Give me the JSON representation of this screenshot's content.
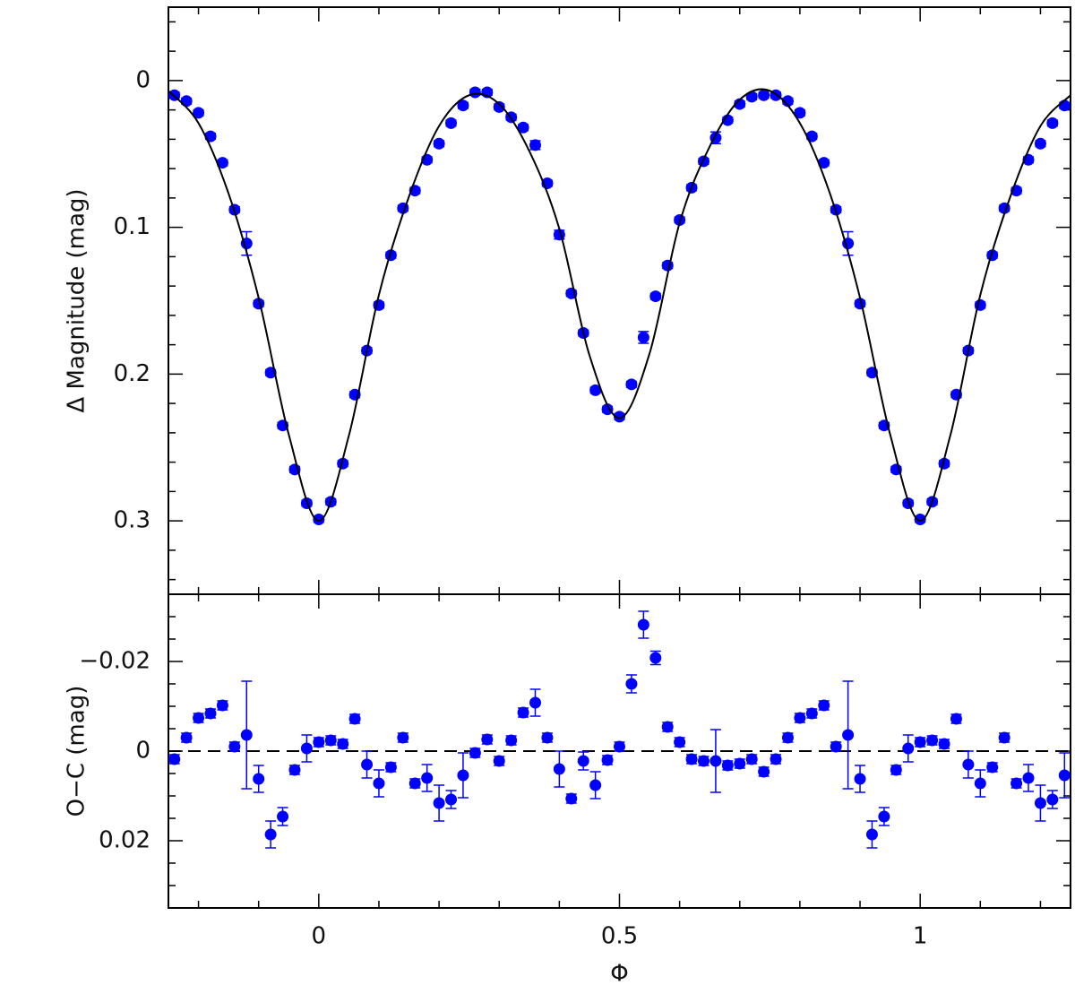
{
  "chart_data": [
    {
      "type": "scatter",
      "y_label": "Δ Magnitude (mag)",
      "xlim": [
        -0.25,
        1.25
      ],
      "xticks": [
        0,
        0.5,
        1
      ],
      "xticks_minor": [
        -0.2,
        -0.1,
        0.1,
        0.2,
        0.3,
        0.4,
        0.6,
        0.7,
        0.8,
        0.9,
        1.1,
        1.2
      ],
      "show_xtick_labels": false,
      "ylim": [
        0.35,
        -0.05
      ],
      "yticks": [
        0,
        0.1,
        0.2,
        0.3
      ],
      "yticks_minor": [
        -0.04,
        -0.02,
        0.02,
        0.04,
        0.06,
        0.08,
        0.12,
        0.14,
        0.16,
        0.18,
        0.22,
        0.24,
        0.26,
        0.28,
        0.32,
        0.34
      ],
      "x": [
        -0.24,
        -0.22,
        -0.2,
        -0.18,
        -0.16,
        -0.14,
        -0.12,
        -0.1,
        -0.08,
        -0.06,
        -0.04,
        -0.02,
        0,
        0.02,
        0.04,
        0.06,
        0.08,
        0.1,
        0.12,
        0.14,
        0.16,
        0.18,
        0.2,
        0.22,
        0.24,
        0.26,
        0.28,
        0.3,
        0.32,
        0.34,
        0.36,
        0.38,
        0.4,
        0.42,
        0.44,
        0.46,
        0.48,
        0.5,
        0.52,
        0.54,
        0.56,
        0.58,
        0.6,
        0.62,
        0.64,
        0.66,
        0.68,
        0.7,
        0.72,
        0.74,
        0.76,
        0.78,
        0.8,
        0.82,
        0.84,
        0.86,
        0.88,
        0.9,
        0.92,
        0.94,
        0.96,
        0.98,
        1,
        1.02,
        1.04,
        1.06,
        1.08,
        1.1,
        1.12,
        1.14,
        1.16,
        1.18,
        1.2,
        1.22,
        1.24
      ],
      "series": [
        {
          "color": "#0000ff",
          "values": [
            0.01,
            0.014,
            0.022,
            0.038,
            0.056,
            0.088,
            0.111,
            0.152,
            0.199,
            0.235,
            0.265,
            0.288,
            0.299,
            0.287,
            0.261,
            0.214,
            0.184,
            0.153,
            0.119,
            0.087,
            0.075,
            0.054,
            0.043,
            0.029,
            0.017,
            0.008,
            0.008,
            0.018,
            0.025,
            0.032,
            0.044,
            0.07,
            0.105,
            0.145,
            0.172,
            0.211,
            0.224,
            0.229,
            0.207,
            0.175,
            0.147,
            0.126,
            0.095,
            0.073,
            0.055,
            0.039,
            0.027,
            0.016,
            0.011,
            0.01,
            0.01,
            0.014,
            0.022,
            0.038,
            0.056,
            0.088,
            0.111,
            0.152,
            0.199,
            0.235,
            0.265,
            0.288,
            0.299,
            0.287,
            0.261,
            0.214,
            0.184,
            0.153,
            0.119,
            0.087,
            0.075,
            0.054,
            0.043,
            0.029,
            0.017
          ],
          "errors": [
            0.002,
            0.002,
            0.002,
            0.002,
            0.002,
            0.002,
            0.008,
            0.002,
            0.002,
            0.002,
            0.002,
            0.002,
            0.002,
            0.002,
            0.002,
            0.002,
            0.002,
            0.002,
            0.002,
            0.002,
            0.002,
            0.002,
            0.002,
            0.002,
            0.002,
            0.002,
            0.002,
            0.002,
            0.002,
            0.002,
            0.003,
            0.002,
            0.003,
            0.002,
            0.002,
            0.002,
            0.002,
            0.002,
            0.002,
            0.004,
            0.002,
            0.002,
            0.002,
            0.002,
            0.002,
            0.004,
            0.002,
            0.002,
            0.002,
            0.002,
            0.002,
            0.002,
            0.002,
            0.002,
            0.002,
            0.002,
            0.008,
            0.002,
            0.002,
            0.002,
            0.002,
            0.002,
            0.002,
            0.002,
            0.002,
            0.002,
            0.002,
            0.002,
            0.002,
            0.002,
            0.002,
            0.002,
            0.002,
            0.002,
            0.002
          ]
        },
        {
          "type": "line",
          "color": "#000000",
          "x": [
            -0.25,
            -0.2,
            -0.15,
            -0.1,
            -0.05,
            0,
            0.05,
            0.1,
            0.15,
            0.2,
            0.25,
            0.3,
            0.35,
            0.4,
            0.45,
            0.5,
            0.55,
            0.6,
            0.65,
            0.7,
            0.75,
            0.8,
            0.85,
            0.9,
            0.95,
            1,
            1.05,
            1.1,
            1.15,
            1.2,
            1.25
          ],
          "values": [
            0.007,
            0.029,
            0.077,
            0.148,
            0.241,
            0.3,
            0.242,
            0.146,
            0.079,
            0.031,
            0.01,
            0.016,
            0.048,
            0.101,
            0.187,
            0.23,
            0.186,
            0.097,
            0.045,
            0.013,
            0.007,
            0.029,
            0.077,
            0.148,
            0.241,
            0.3,
            0.242,
            0.146,
            0.079,
            0.031,
            0.01
          ]
        }
      ]
    },
    {
      "type": "scatter",
      "y_label": "O−C (mag)",
      "x_label": "Φ",
      "xlim": [
        -0.25,
        1.25
      ],
      "xticks": [
        0,
        0.5,
        1
      ],
      "xticks_minor": [
        -0.2,
        -0.1,
        0.1,
        0.2,
        0.3,
        0.4,
        0.6,
        0.7,
        0.8,
        0.9,
        1.1,
        1.2
      ],
      "show_xtick_labels": true,
      "ylim": [
        0.035,
        -0.035
      ],
      "yticks": [
        {
          "value": -0.02,
          "label": "−0.02"
        },
        0,
        0.02
      ],
      "yticks_minor": [
        -0.03,
        -0.025,
        -0.015,
        -0.01,
        -0.005,
        0.005,
        0.01,
        0.015,
        0.025,
        0.03
      ],
      "hline": {
        "value": 0,
        "style": "dashed"
      },
      "x": [
        -0.24,
        -0.22,
        -0.2,
        -0.18,
        -0.16,
        -0.14,
        -0.12,
        -0.1,
        -0.08,
        -0.06,
        -0.04,
        -0.02,
        0,
        0.02,
        0.04,
        0.06,
        0.08,
        0.1,
        0.12,
        0.14,
        0.16,
        0.18,
        0.2,
        0.22,
        0.24,
        0.26,
        0.28,
        0.3,
        0.32,
        0.34,
        0.36,
        0.38,
        0.4,
        0.42,
        0.44,
        0.46,
        0.48,
        0.5,
        0.52,
        0.54,
        0.56,
        0.58,
        0.6,
        0.62,
        0.64,
        0.66,
        0.68,
        0.7,
        0.72,
        0.74,
        0.76,
        0.78,
        0.8,
        0.82,
        0.84,
        0.86,
        0.88,
        0.9,
        0.92,
        0.94,
        0.96,
        0.98,
        1,
        1.02,
        1.04,
        1.06,
        1.08,
        1.1,
        1.12,
        1.14,
        1.16,
        1.18,
        1.2,
        1.22,
        1.24
      ],
      "series": [
        {
          "color": "#0000ff",
          "values": [
            0.0018,
            -0.003,
            -0.0074,
            -0.0084,
            -0.0102,
            -0.001,
            -0.0036,
            0.0062,
            0.0186,
            0.0146,
            0.0042,
            -0.0006,
            -0.002,
            -0.0024,
            -0.0016,
            -0.0072,
            0.003,
            0.0072,
            0.0036,
            -0.003,
            0.0072,
            0.006,
            0.0116,
            0.0108,
            0.0054,
            0.0004,
            -0.0026,
            0.0022,
            -0.0024,
            -0.0086,
            -0.0108,
            -0.003,
            0.004,
            0.0106,
            0.0022,
            0.0076,
            0.002,
            -0.001,
            -0.015,
            -0.0282,
            -0.0208,
            -0.0054,
            -0.002,
            0.0018,
            0.0022,
            0.0022,
            0.0032,
            0.0028,
            0.0018,
            0.0046,
            0.0018,
            -0.003,
            -0.0074,
            -0.0084,
            -0.0102,
            -0.001,
            -0.0036,
            0.0062,
            0.0186,
            0.0146,
            0.0042,
            -0.0006,
            -0.002,
            -0.0024,
            -0.0016,
            -0.0072,
            0.003,
            0.0072,
            0.0036,
            -0.003,
            0.0072,
            0.006,
            0.0116,
            0.0108,
            0.0054
          ],
          "errors": [
            0.001,
            0.001,
            0.001,
            0.001,
            0.001,
            0.001,
            0.012,
            0.003,
            0.003,
            0.002,
            0.001,
            0.003,
            0.001,
            0.001,
            0.001,
            0.001,
            0.003,
            0.003,
            0.001,
            0.001,
            0.001,
            0.003,
            0.004,
            0.002,
            0.005,
            0.001,
            0.001,
            0.001,
            0.001,
            0.001,
            0.003,
            0.001,
            0.004,
            0.001,
            0.002,
            0.003,
            0.001,
            0.001,
            0.002,
            0.003,
            0.0015,
            0.001,
            0.001,
            0.001,
            0.001,
            0.007,
            0.001,
            0.001,
            0.001,
            0.001,
            0.001,
            0.001,
            0.001,
            0.001,
            0.001,
            0.001,
            0.012,
            0.003,
            0.003,
            0.002,
            0.001,
            0.003,
            0.001,
            0.001,
            0.001,
            0.001,
            0.003,
            0.003,
            0.001,
            0.001,
            0.001,
            0.003,
            0.004,
            0.002,
            0.005
          ]
        }
      ]
    }
  ]
}
